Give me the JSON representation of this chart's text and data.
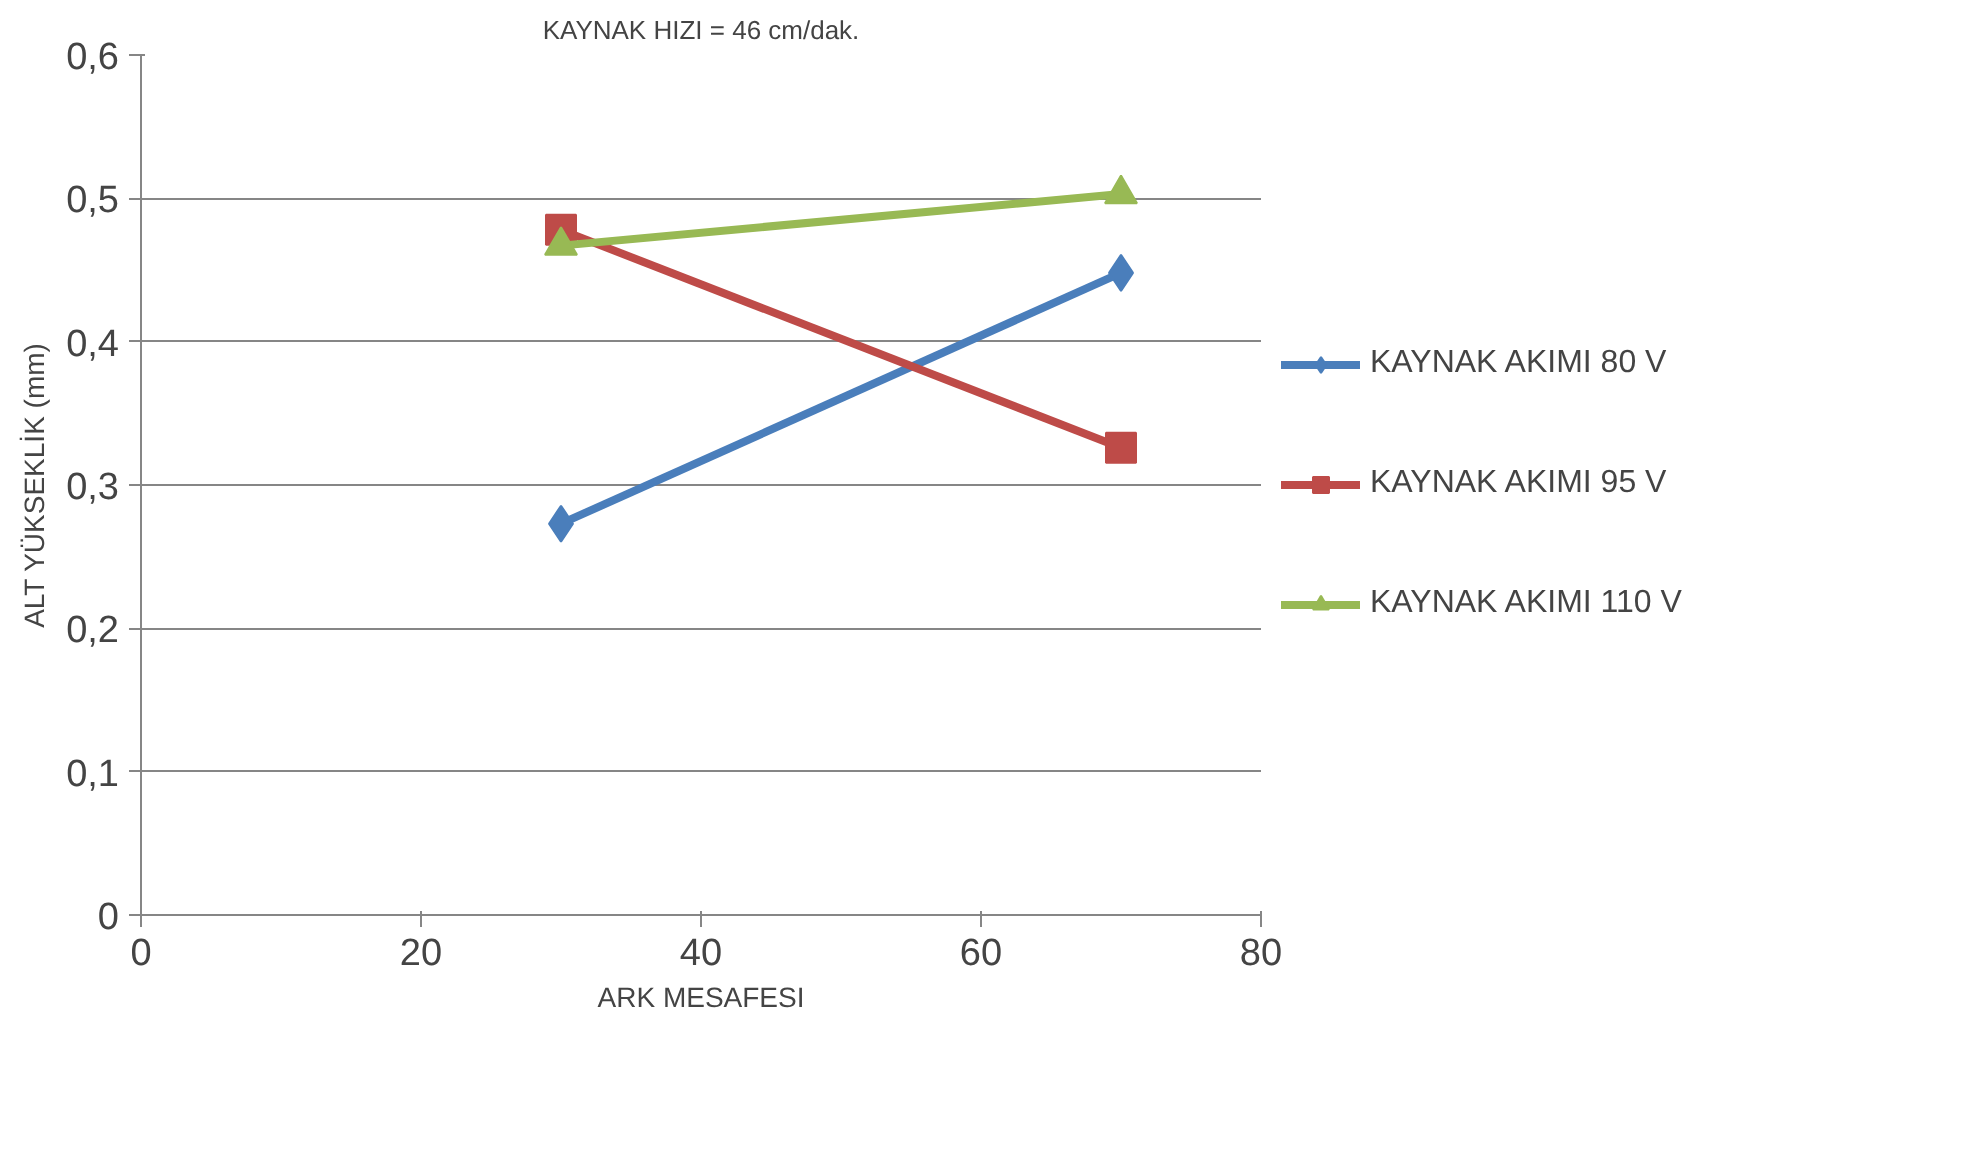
{
  "chart_data": {
    "type": "line",
    "title": "KAYNAK HIZI = 46 cm/dak.",
    "xlabel": "ARK MESAFESI",
    "ylabel": "ALT YÜKSEKLİK (mm)",
    "x": [
      30,
      70
    ],
    "series": [
      {
        "name": "KAYNAK AKIMI 80 V",
        "color": "#4a7ebb",
        "marker": "diamond",
        "values": [
          0.273,
          0.448
        ]
      },
      {
        "name": "KAYNAK AKIMI 95 V",
        "color": "#be4b48",
        "marker": "square",
        "values": [
          0.478,
          0.326
        ]
      },
      {
        "name": "KAYNAK AKIMI 110 V",
        "color": "#98b954",
        "marker": "triangle",
        "values": [
          0.467,
          0.503
        ]
      }
    ],
    "xlim": [
      0,
      80
    ],
    "xticks": [
      0,
      20,
      40,
      60,
      80
    ],
    "ylim": [
      0,
      0.6
    ],
    "yticks": [
      {
        "value": 0,
        "label": "0"
      },
      {
        "value": 0.1,
        "label": "0,1"
      },
      {
        "value": 0.2,
        "label": "0,2"
      },
      {
        "value": 0.3,
        "label": "0,3"
      },
      {
        "value": 0.4,
        "label": "0,4"
      },
      {
        "value": 0.5,
        "label": "0,5"
      },
      {
        "value": 0.6,
        "label": "0,6"
      }
    ],
    "grid": "y",
    "legend": "right",
    "line_style": "solid"
  }
}
